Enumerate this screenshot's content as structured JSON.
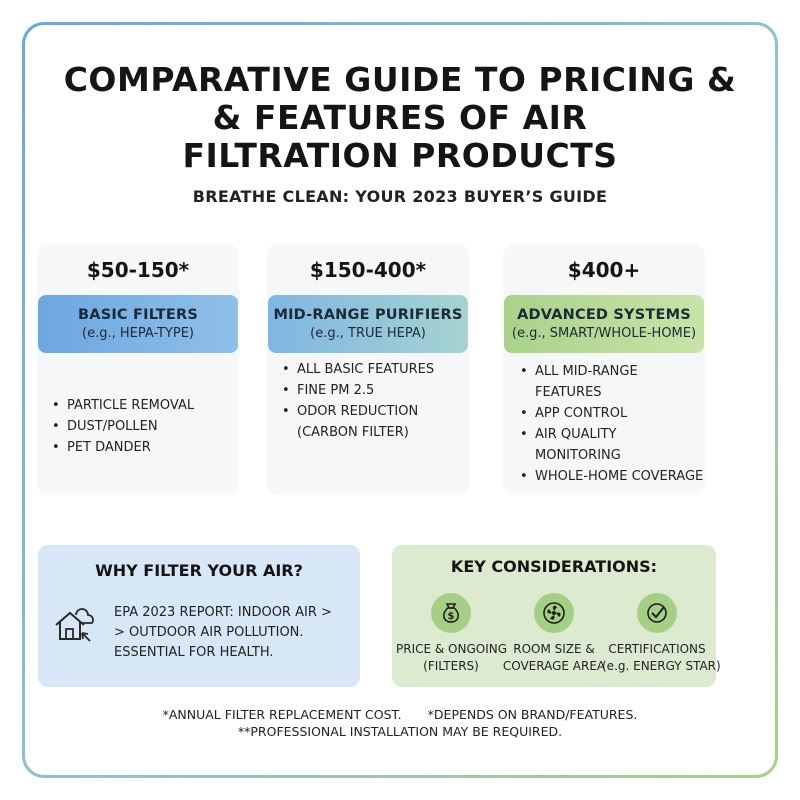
{
  "title": {
    "line1": "COMPARATIVE GUIDE TO PRICING &",
    "line2": "& FEATURES OF AIR",
    "line3": "FILTRATION PRODUCTS"
  },
  "subtitle": "BREATHE CLEAN: YOUR 2023 BUYER’S GUIDE",
  "tiers": [
    {
      "price": "$50-150*",
      "name": "BASIC FILTERS",
      "example": "(e.g., HEPA-TYPE)",
      "features": [
        "PARTICLE REMOVAL",
        "DUST/POLLEN",
        "PET DANDER"
      ],
      "color": "#6ca7e0"
    },
    {
      "price": "$150-400*",
      "name": "MID-RANGE PURIFIERS",
      "example": "(e.g., TRUE HEPA)",
      "features": [
        "ALL BASIC FEATURES",
        "FINE PM 2.5",
        "ODOR REDUCTION",
        "(CARBON FILTER)"
      ],
      "color": "#8fc3cf"
    },
    {
      "price": "$400+",
      "name": "ADVANCED SYSTEMS",
      "example": "(e.g., SMART/WHOLE-HOME)",
      "features": [
        "ALL MID-RANGE",
        "FEATURES",
        "APP CONTROL",
        "AIR QUALITY MONITORING",
        "WHOLE-HOME COVERAGE"
      ],
      "color": "#a9d28a"
    }
  ],
  "why": {
    "title": "WHY FILTER YOUR AIR?",
    "lines": [
      "EPA 2023 REPORT: INDOOR AIR >",
      "> OUTDOOR AIR POLLUTION.",
      "ESSENTIAL FOR HEALTH."
    ],
    "icon": "house-cursor-icon"
  },
  "key": {
    "title": "KEY CONSIDERATIONS:",
    "items": [
      {
        "icon": "money-bag-icon",
        "line1": "PRICE & ONGOING",
        "line2": "(FILTERS)"
      },
      {
        "icon": "fan-icon",
        "line1": "ROOM SIZE &",
        "line2": "COVERAGE AREA"
      },
      {
        "icon": "check-badge-icon",
        "line1": "CERTIFICATIONS",
        "line2": "(e.g. ENERGY STAR)"
      }
    ]
  },
  "footnotes": {
    "a": "*ANNUAL FILTER REPLACEMENT COST.",
    "b": "*DEPENDS ON BRAND/FEATURES.",
    "c": "**PROFESSIONAL INSTALLATION MAY BE REQUIRED."
  }
}
